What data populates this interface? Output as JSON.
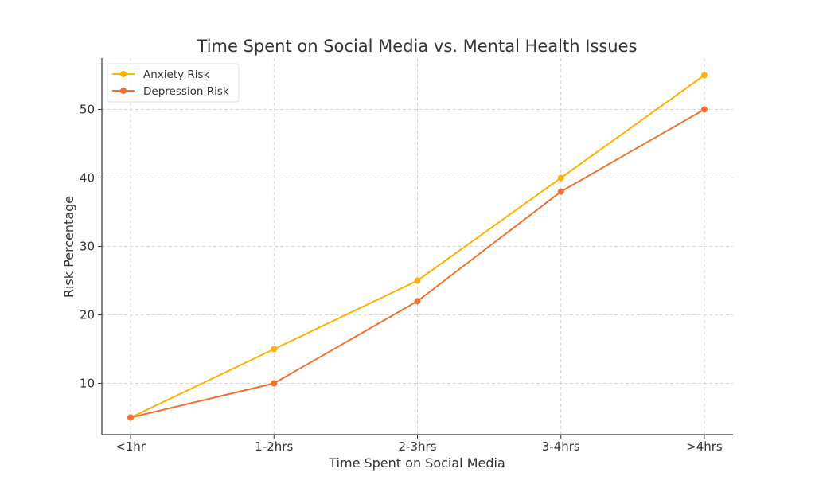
{
  "chart_data": {
    "type": "line",
    "title": "Time Spent on Social Media vs. Mental Health Issues",
    "xlabel": "Time Spent on Social Media",
    "ylabel": "Risk Percentage",
    "categories": [
      "<1hr",
      "1-2hrs",
      "2-3hrs",
      "3-4hrs",
      ">4hrs"
    ],
    "series": [
      {
        "name": "Anxiety Risk",
        "values": [
          5,
          15,
          25,
          40,
          55
        ],
        "color": "#FFB000"
      },
      {
        "name": "Depression Risk",
        "values": [
          5,
          10,
          22,
          38,
          50
        ],
        "color": "#F4702E"
      }
    ],
    "ylim": [
      2.5,
      57.5
    ],
    "yticks": [
      10,
      20,
      30,
      40,
      50
    ],
    "grid": true,
    "legend": "top-left",
    "markers": "circle"
  }
}
